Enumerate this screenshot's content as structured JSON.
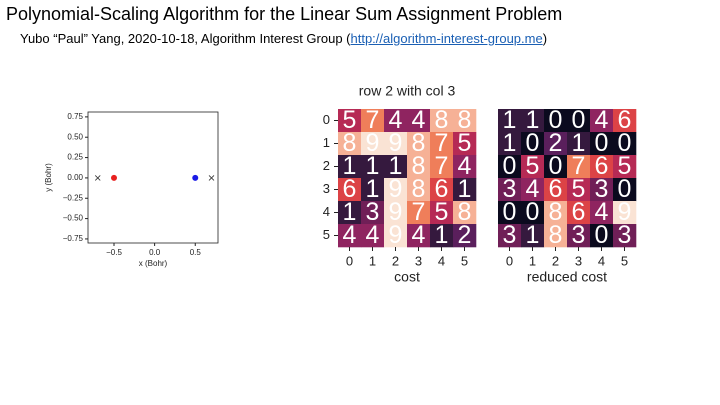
{
  "header": {
    "title": "Polynomial-Scaling Algorithm for the Linear Sum Assignment Problem",
    "subtitle_before": "Yubo “Paul” Yang, 2020-10-18, Algorithm Interest Group (",
    "link": "http://algorithm-interest-group.me",
    "subtitle_after": ")"
  },
  "chart_data": [
    {
      "type": "scatter",
      "xlabel": "x (Bohr)",
      "ylabel": "y (Bohr)",
      "xlim": [
        -0.82,
        0.78
      ],
      "ylim": [
        -0.8,
        0.81
      ],
      "xticks": [
        {
          "value": -0.5,
          "label": "−0.5"
        },
        {
          "value": 0,
          "label": "0.0"
        },
        {
          "value": 0.5,
          "label": "0.5"
        }
      ],
      "yticks": [
        {
          "value": -0.75,
          "label": "−0.75"
        },
        {
          "value": -0.5,
          "label": "−0.50"
        },
        {
          "value": -0.25,
          "label": "−0.25"
        },
        {
          "value": 0,
          "label": "0.00"
        },
        {
          "value": 0.25,
          "label": "0.25"
        },
        {
          "value": 0.5,
          "label": "0.50"
        },
        {
          "value": 0.75,
          "label": "0.75"
        }
      ],
      "series": [
        {
          "color": "#e8201f",
          "marker": "circle",
          "x": [
            -0.5
          ],
          "values": [
            0
          ]
        },
        {
          "color": "#1a1ae6",
          "marker": "circle",
          "x": [
            0.5
          ],
          "values": [
            0
          ]
        },
        {
          "color": "#333333",
          "marker": "x",
          "x": [
            -0.7,
            0.7
          ],
          "values": [
            0,
            0
          ]
        }
      ]
    },
    {
      "type": "heatmap",
      "title": "row 2 with col 3",
      "xlabel": "cost",
      "colormap": "rocket",
      "clim": [
        0,
        9
      ],
      "xticks": [
        0,
        1,
        2,
        3,
        4,
        5
      ],
      "yticks": [
        0,
        1,
        2,
        3,
        4,
        5
      ],
      "values": [
        [
          5,
          7,
          4,
          4,
          8,
          8
        ],
        [
          8,
          9,
          9,
          8,
          7,
          5
        ],
        [
          1,
          1,
          1,
          8,
          7,
          4
        ],
        [
          6,
          1,
          9,
          8,
          6,
          1
        ],
        [
          1,
          3,
          9,
          7,
          5,
          8
        ],
        [
          4,
          4,
          9,
          4,
          1,
          2
        ]
      ]
    },
    {
      "type": "heatmap",
      "xlabel": "reduced cost",
      "colormap": "rocket",
      "clim": [
        0,
        9
      ],
      "xticks": [
        0,
        1,
        2,
        3,
        4,
        5
      ],
      "values": [
        [
          1,
          1,
          0,
          0,
          4,
          6
        ],
        [
          1,
          0,
          2,
          1,
          0,
          0
        ],
        [
          0,
          5,
          0,
          7,
          6,
          5
        ],
        [
          3,
          4,
          6,
          5,
          3,
          0
        ],
        [
          0,
          0,
          8,
          6,
          4,
          9
        ],
        [
          3,
          1,
          8,
          3,
          0,
          3
        ]
      ]
    }
  ]
}
